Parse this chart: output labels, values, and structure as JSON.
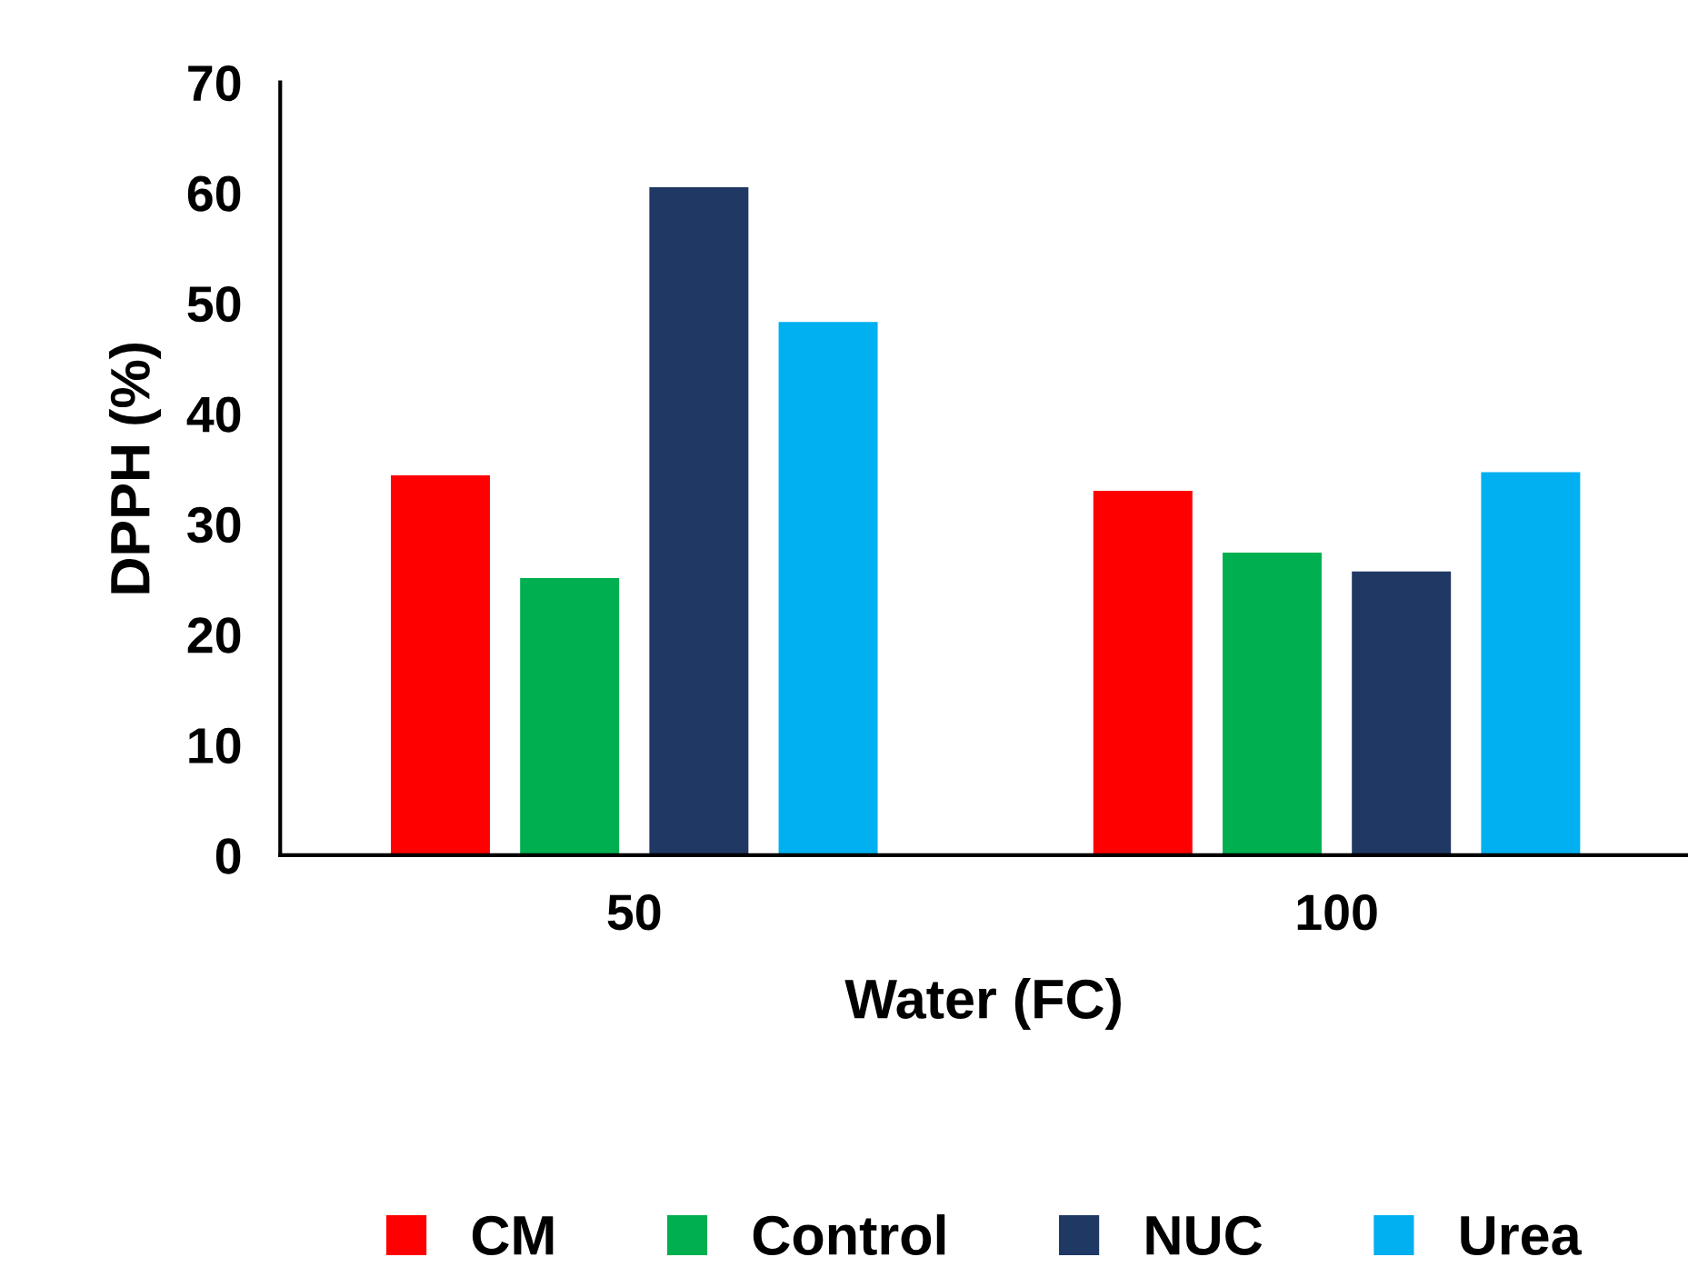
{
  "chart_data": {
    "type": "bar",
    "xlabel": "Water (FC)",
    "ylabel": "DPPH (%)",
    "categories": [
      "50",
      "100"
    ],
    "series": [
      {
        "name": "CM",
        "color": "#ff0000",
        "values": [
          34.4,
          33.0
        ]
      },
      {
        "name": "Control",
        "color": "#00b050",
        "values": [
          25.1,
          27.4
        ]
      },
      {
        "name": "NUC",
        "color": "#203864",
        "values": [
          60.5,
          25.7
        ]
      },
      {
        "name": "Urea",
        "color": "#00b0f0",
        "values": [
          48.3,
          34.7
        ]
      }
    ],
    "ylim": [
      0,
      70
    ],
    "yticks": [
      0,
      10,
      20,
      30,
      40,
      50,
      60,
      70
    ],
    "grid": false,
    "legend": "bottom"
  }
}
